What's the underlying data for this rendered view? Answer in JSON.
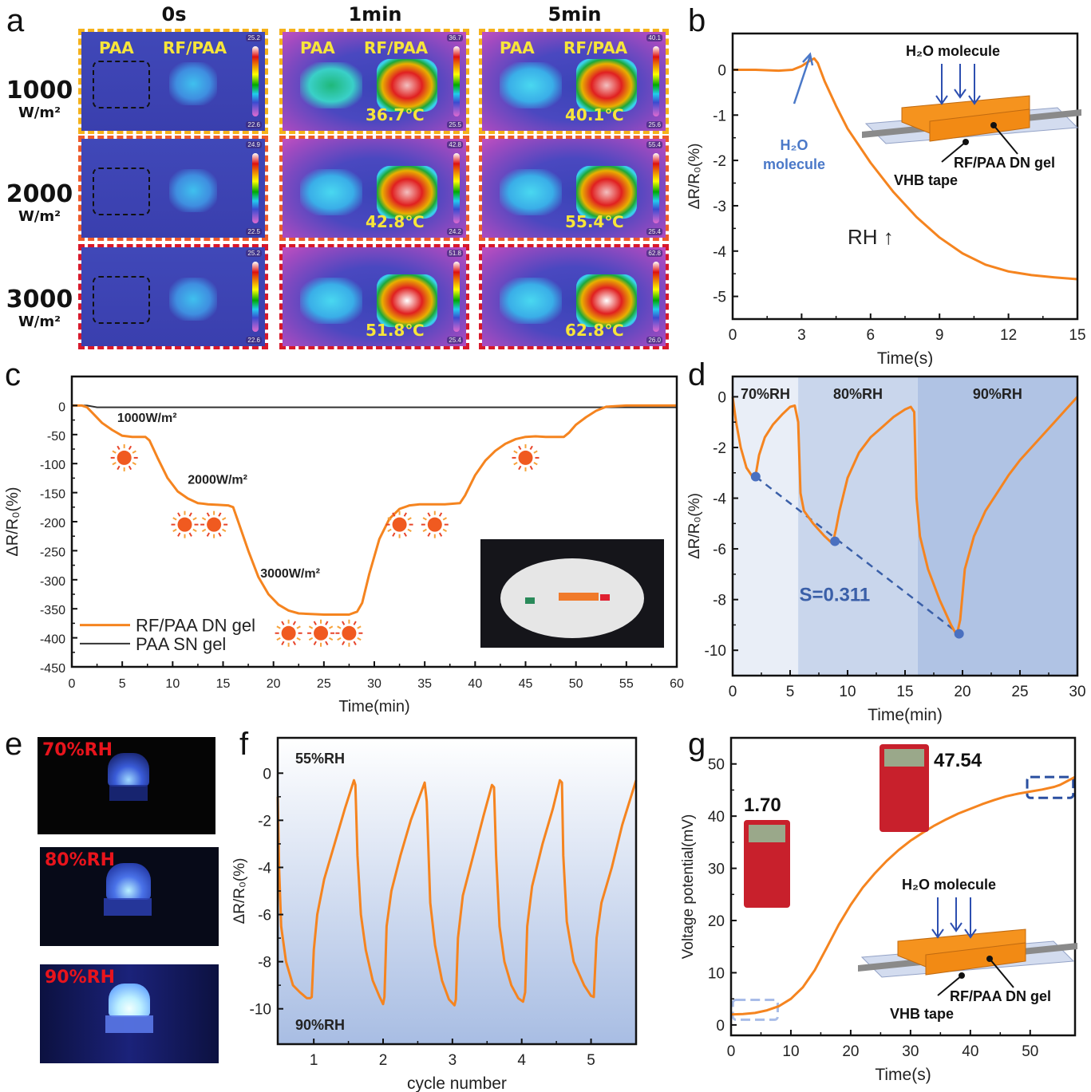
{
  "panel_labels": {
    "a": "a",
    "b": "b",
    "c": "c",
    "d": "d",
    "e": "e",
    "f": "f",
    "g": "g"
  },
  "panel_a": {
    "columns": [
      "0s",
      "1min",
      "5min"
    ],
    "rows": [
      {
        "value": "1000",
        "unit": "W/m²"
      },
      {
        "value": "2000",
        "unit": "W/m²"
      },
      {
        "value": "3000",
        "unit": "W/m²"
      }
    ],
    "sample_labels": {
      "left": "PAA",
      "right": "RF/PAA"
    },
    "images": [
      [
        {
          "max": "25.2",
          "min": "22.6",
          "temp": ""
        },
        {
          "max": "36.7",
          "min": "25.5",
          "temp": "36.7℃"
        },
        {
          "max": "40.1",
          "min": "25.6",
          "temp": "40.1℃"
        }
      ],
      [
        {
          "max": "24.9",
          "min": "22.5",
          "temp": ""
        },
        {
          "max": "42.8",
          "min": "24.2",
          "temp": "42.8℃"
        },
        {
          "max": "55.4",
          "min": "25.4",
          "temp": "55.4℃"
        }
      ],
      [
        {
          "max": "25.2",
          "min": "22.6",
          "temp": ""
        },
        {
          "max": "51.8",
          "min": "25.4",
          "temp": "51.8℃"
        },
        {
          "max": "62.8",
          "min": "26.0",
          "temp": "62.8℃"
        }
      ]
    ]
  },
  "panel_e": {
    "photos": [
      {
        "label": "70%RH"
      },
      {
        "label": "80%RH"
      },
      {
        "label": "90%RH"
      }
    ]
  },
  "chart_data": [
    {
      "id": "b",
      "type": "line",
      "xlabel": "Time(s)",
      "ylabel": "ΔR/R₀(%)",
      "xlim": [
        0,
        15
      ],
      "ylim": [
        -5.5,
        0.8
      ],
      "xticks": [
        0,
        3,
        6,
        9,
        12,
        15
      ],
      "yticks": [
        0,
        -1,
        -2,
        -3,
        -4,
        -5
      ],
      "series": [
        {
          "name": "RF/PAA DN gel",
          "color": "#f5841f",
          "x": [
            0,
            1,
            2,
            2.6,
            3.0,
            3.3,
            3.55,
            3.7,
            4.0,
            4.5,
            5,
            6,
            7,
            8,
            9,
            10,
            11,
            12,
            13,
            14,
            15
          ],
          "y": [
            0,
            0,
            -0.02,
            0,
            0.08,
            0.18,
            0.25,
            0.15,
            -0.25,
            -0.8,
            -1.3,
            -2.05,
            -2.7,
            -3.25,
            -3.7,
            -4.05,
            -4.3,
            -4.45,
            -4.53,
            -4.58,
            -4.62
          ]
        }
      ],
      "annotations": [
        {
          "text": "H₂O molecule",
          "note": "arrow to peak",
          "color": "#4a78c8"
        },
        {
          "text": "RH ↑"
        }
      ],
      "inset_labels": {
        "top": "H₂O  molecule",
        "gel": "RF/PAA DN gel",
        "tape": "VHB tape"
      }
    },
    {
      "id": "c",
      "type": "line",
      "xlabel": "Time(min)",
      "ylabel": "ΔR/R₀(%)",
      "xlim": [
        0,
        60
      ],
      "ylim": [
        -450,
        50
      ],
      "xticks": [
        0,
        5,
        10,
        15,
        20,
        25,
        30,
        35,
        40,
        45,
        50,
        55,
        60
      ],
      "yticks": [
        0,
        -50,
        -100,
        -150,
        -200,
        -250,
        -300,
        -350,
        -400,
        -450
      ],
      "series": [
        {
          "name": "RF/PAA DN gel",
          "color": "#f5841f",
          "x": [
            0,
            1,
            1.5,
            2,
            3,
            4,
            5,
            6,
            7.3,
            7.7,
            8.5,
            9.5,
            10.5,
            11.5,
            12.5,
            13.5,
            14.5,
            15.5,
            16,
            16.5,
            17.5,
            18.5,
            19.5,
            20.5,
            21.5,
            22.5,
            25,
            27.5,
            28.3,
            28.8,
            29.5,
            30.5,
            31.5,
            32.5,
            33.5,
            34.5,
            37,
            38.5,
            39,
            40,
            41,
            42,
            43,
            44,
            45,
            46,
            47,
            48.8,
            49.3,
            50,
            51,
            52,
            53,
            55,
            60
          ],
          "y": [
            0,
            0,
            -3,
            -12,
            -30,
            -42,
            -52,
            -54,
            -54,
            -60,
            -90,
            -125,
            -148,
            -160,
            -168,
            -170,
            -171,
            -172,
            -175,
            -200,
            -250,
            -295,
            -325,
            -343,
            -353,
            -358,
            -360,
            -360,
            -355,
            -340,
            -290,
            -230,
            -195,
            -178,
            -172,
            -170,
            -170,
            -168,
            -155,
            -120,
            -95,
            -78,
            -66,
            -58,
            -54,
            -53,
            -54,
            -54,
            -47,
            -33,
            -20,
            -9,
            -2,
            0,
            0
          ]
        },
        {
          "name": "PAA SN gel",
          "color": "#333333",
          "x": [
            0,
            1.5,
            2.5,
            60
          ],
          "y": [
            0,
            0,
            -3,
            -3
          ]
        }
      ],
      "annotations": [
        {
          "text": "1000W/m²",
          "icons": 1
        },
        {
          "text": "2000W/m²",
          "icons": 2
        },
        {
          "text": "3000W/m²",
          "icons": 3
        },
        {
          "text": "",
          "icons": 2,
          "note": "recovery step"
        },
        {
          "text": "",
          "icons": 1,
          "note": "recovery step"
        }
      ],
      "legend": "bottom-left"
    },
    {
      "id": "d",
      "type": "line",
      "xlabel": "Time(min)",
      "ylabel": "ΔR/R₀(%)",
      "xlim": [
        0,
        30
      ],
      "ylim": [
        -11,
        0.8
      ],
      "xticks": [
        0,
        5,
        10,
        15,
        20,
        25,
        30
      ],
      "yticks": [
        0,
        -2,
        -4,
        -6,
        -8,
        -10
      ],
      "regions": [
        {
          "label": "70%RH",
          "x": [
            0,
            5.7
          ],
          "color": "#e9eef7"
        },
        {
          "label": "80%RH",
          "x": [
            5.7,
            16.1
          ],
          "color": "#c9d6ec"
        },
        {
          "label": "90%RH",
          "x": [
            16.1,
            30
          ],
          "color": "#b0c3e4"
        }
      ],
      "series": [
        {
          "name": "RF/PAA DN gel",
          "color": "#f5841f",
          "x": [
            0,
            0.3,
            0.7,
            1.2,
            1.8,
            2.0,
            2.3,
            2.8,
            3.5,
            4.3,
            5.0,
            5.4,
            5.7,
            5.9,
            6.2,
            7,
            8,
            8.7,
            9,
            9.3,
            10,
            11,
            12,
            13,
            14,
            15,
            15.5,
            15.8,
            16,
            16.3,
            17,
            18,
            19,
            19.5,
            19.8,
            20.2,
            21,
            22,
            23,
            24,
            25,
            26,
            27,
            28,
            29,
            30
          ],
          "y": [
            0,
            -1.0,
            -2.0,
            -2.8,
            -3.2,
            -3.1,
            -2.3,
            -1.6,
            -1.1,
            -0.7,
            -0.4,
            -0.35,
            -1.0,
            -3.8,
            -4.5,
            -5.0,
            -5.5,
            -5.8,
            -5.2,
            -4.5,
            -3.2,
            -2.2,
            -1.6,
            -1.2,
            -0.8,
            -0.5,
            -0.4,
            -0.6,
            -4.0,
            -5.5,
            -6.8,
            -8.0,
            -9.0,
            -9.4,
            -8.8,
            -6.8,
            -5.5,
            -4.5,
            -3.8,
            -3.1,
            -2.5,
            -2.0,
            -1.5,
            -1.0,
            -0.5,
            0
          ]
        }
      ],
      "markers": [
        {
          "x": 2.0,
          "y": -3.15
        },
        {
          "x": 8.9,
          "y": -5.7
        },
        {
          "x": 19.7,
          "y": -9.35
        }
      ],
      "fit_annotation": "S=0.311",
      "fit_color": "#3a5fa8"
    },
    {
      "id": "f",
      "type": "line",
      "xlabel": "cycle number",
      "ylabel": "ΔR/R₀(%)",
      "xlim": [
        0.48,
        5.65
      ],
      "ylim": [
        -11.5,
        1.5
      ],
      "xticks": [
        1,
        2,
        3,
        4,
        5
      ],
      "yticks": [
        0,
        -2,
        -4,
        -6,
        -8,
        -10
      ],
      "annotations": [
        {
          "text": "55%RH",
          "position": "top-left"
        },
        {
          "text": "90%RH",
          "position": "bottom-left"
        }
      ],
      "series": [
        {
          "name": "RF/PAA DN gel",
          "color": "#f5841f",
          "x": [
            0.48,
            0.5,
            0.53,
            0.6,
            0.7,
            0.8,
            0.9,
            0.95,
            0.97,
            1.0,
            1.05,
            1.15,
            1.3,
            1.45,
            1.58,
            1.6,
            1.63,
            1.68,
            1.75,
            1.85,
            1.95,
            2.0,
            2.02,
            2.05,
            2.12,
            2.25,
            2.4,
            2.55,
            2.6,
            2.63,
            2.68,
            2.75,
            2.85,
            2.95,
            3.03,
            3.05,
            3.08,
            3.15,
            3.3,
            3.45,
            3.57,
            3.6,
            3.63,
            3.68,
            3.75,
            3.85,
            3.95,
            4.02,
            4.05,
            4.08,
            4.15,
            4.3,
            4.45,
            4.55,
            4.58,
            4.6,
            4.65,
            4.75,
            4.9,
            5.0,
            5.04,
            5.08,
            5.15,
            5.3,
            5.45,
            5.65
          ],
          "y": [
            -1,
            -4,
            -6.5,
            -8,
            -9,
            -9.3,
            -9.55,
            -9.55,
            -9.5,
            -7.5,
            -6,
            -4.5,
            -3,
            -1.5,
            -0.3,
            -0.5,
            -3.5,
            -6,
            -7.5,
            -8.8,
            -9.5,
            -9.8,
            -9.5,
            -6.5,
            -5,
            -3.5,
            -2,
            -0.8,
            -0.4,
            -1.2,
            -5.5,
            -7.3,
            -8.8,
            -9.6,
            -9.85,
            -9.6,
            -7,
            -5.2,
            -3.5,
            -1.8,
            -0.5,
            -0.6,
            -3.5,
            -6.5,
            -8,
            -9,
            -9.55,
            -9.7,
            -9.3,
            -6.5,
            -4.8,
            -3,
            -1.5,
            -0.3,
            -0.4,
            -3.5,
            -6.3,
            -8,
            -9,
            -9.45,
            -9.5,
            -7,
            -5.5,
            -4,
            -2.2,
            -0.3
          ]
        }
      ]
    },
    {
      "id": "g",
      "type": "line",
      "xlabel": "Time(s)",
      "ylabel": "Voltage potential(mV)",
      "xlim": [
        0,
        57.5
      ],
      "ylim": [
        -2,
        55
      ],
      "xticks": [
        0,
        10,
        20,
        30,
        40,
        50
      ],
      "yticks": [
        0,
        10,
        20,
        30,
        40,
        50
      ],
      "series": [
        {
          "name": "RF/PAA DN gel",
          "color": "#f5841f",
          "x": [
            0,
            2,
            4,
            6,
            8,
            10,
            12,
            14,
            16,
            18,
            20,
            22,
            24,
            26,
            28,
            30,
            32,
            34,
            36,
            38,
            40,
            42,
            44,
            46,
            48,
            50,
            52,
            54,
            55,
            56,
            57.5
          ],
          "y": [
            2,
            2.1,
            2.3,
            2.8,
            3.6,
            5,
            7.2,
            10.5,
            14.8,
            19.2,
            23,
            26.3,
            29,
            31.4,
            33.5,
            35.3,
            36.8,
            38.2,
            39.4,
            40.5,
            41.4,
            42.3,
            43.1,
            43.8,
            44.3,
            44.7,
            45.1,
            45.6,
            46,
            46.6,
            47.5
          ]
        }
      ],
      "annotations": [
        {
          "text": "1.70",
          "note": "multimeter reading at start"
        },
        {
          "text": "47.54",
          "note": "multimeter reading at end"
        }
      ],
      "inset_labels": {
        "top": "H₂O  molecule",
        "gel": "RF/PAA DN gel",
        "tape": "VHB tape"
      }
    }
  ]
}
